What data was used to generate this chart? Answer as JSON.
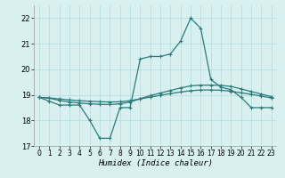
{
  "xlabel": "Humidex (Indice chaleur)",
  "x_hours": [
    0,
    1,
    2,
    3,
    4,
    5,
    6,
    7,
    8,
    9,
    10,
    11,
    12,
    13,
    14,
    15,
    16,
    17,
    18,
    19,
    20,
    21,
    22,
    23
  ],
  "line1_y": [
    18.9,
    18.75,
    18.6,
    18.6,
    18.6,
    18.0,
    17.3,
    17.3,
    18.5,
    18.5,
    20.4,
    20.5,
    20.5,
    20.6,
    21.1,
    22.0,
    21.6,
    19.6,
    19.3,
    19.2,
    18.9,
    18.5,
    18.5,
    18.5
  ],
  "line2_y": [
    18.9,
    18.87,
    18.78,
    18.72,
    18.68,
    18.65,
    18.63,
    18.62,
    18.65,
    18.72,
    18.85,
    18.97,
    19.07,
    19.17,
    19.27,
    19.35,
    19.38,
    19.38,
    19.37,
    19.33,
    19.23,
    19.13,
    19.03,
    18.93
  ],
  "line3_y": [
    18.9,
    18.88,
    18.84,
    18.8,
    18.77,
    18.75,
    18.73,
    18.72,
    18.73,
    18.77,
    18.84,
    18.91,
    18.98,
    19.05,
    19.11,
    19.16,
    19.19,
    19.19,
    19.18,
    19.14,
    19.08,
    19.02,
    18.95,
    18.88
  ],
  "line_color": "#2b7b7b",
  "bg_color": "#d8f0f0",
  "grid_color": "#b8dede",
  "ylim": [
    17.0,
    22.5
  ],
  "yticks": [
    17,
    18,
    19,
    20,
    21,
    22
  ],
  "xticks": [
    0,
    1,
    2,
    3,
    4,
    5,
    6,
    7,
    8,
    9,
    10,
    11,
    12,
    13,
    14,
    15,
    16,
    17,
    18,
    19,
    20,
    21,
    22,
    23
  ],
  "marker": "+",
  "markersize": 3,
  "linewidth": 0.9
}
